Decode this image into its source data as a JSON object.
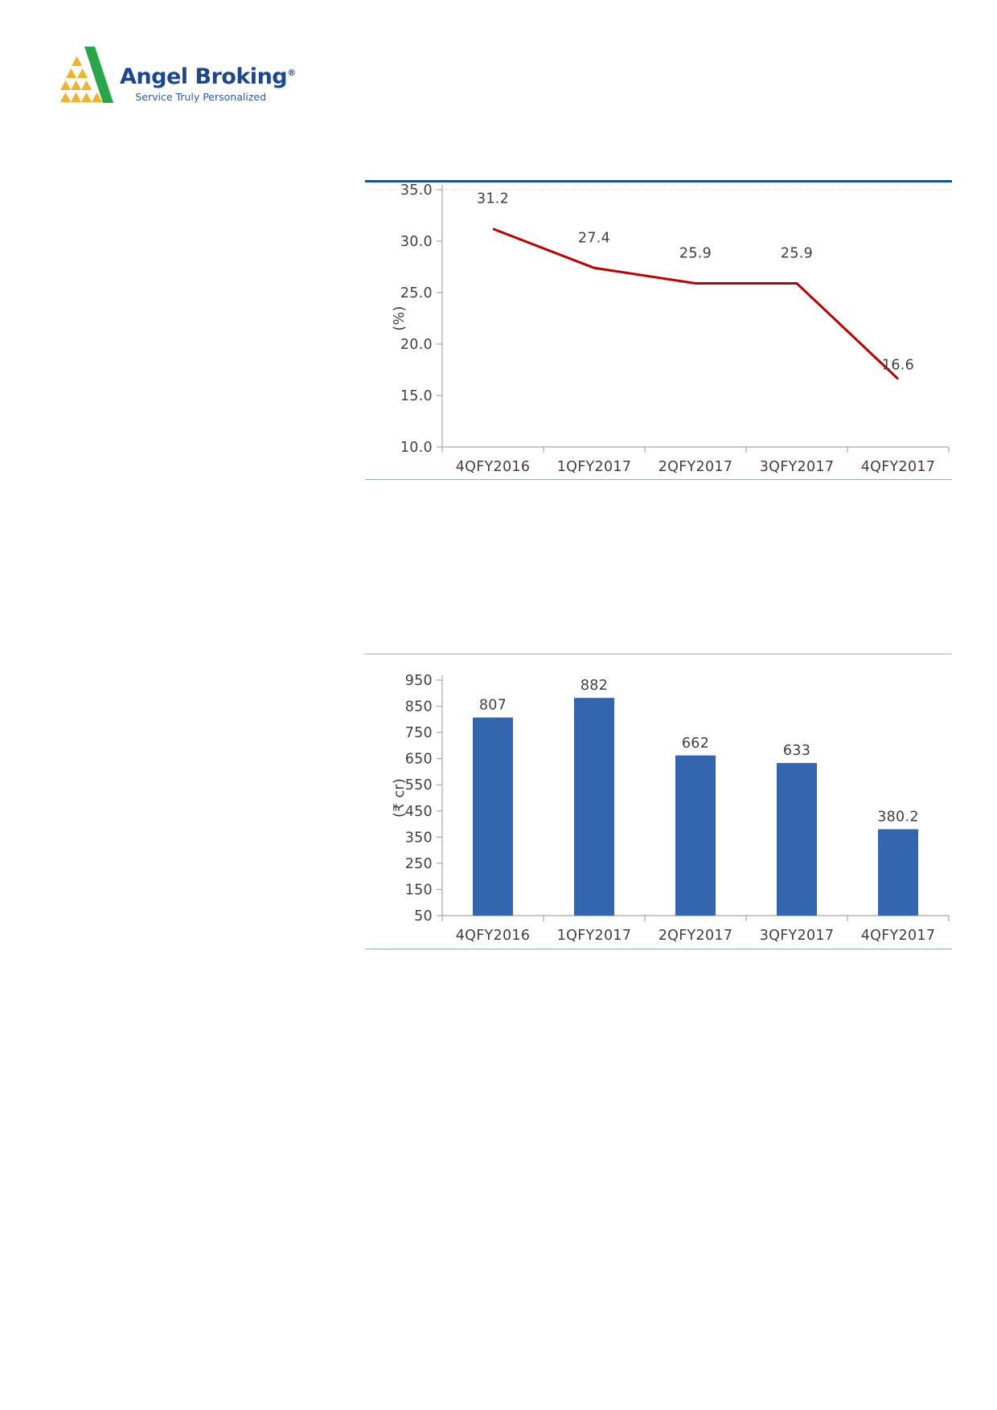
{
  "logo": {
    "name": "Angel Broking",
    "registered_mark": "®",
    "tagline": "Service Truly Personalized",
    "brand_blue": "#1B4791",
    "tagline_blue": "#2C5AA8",
    "green": "#29A64A",
    "yellow": "#F3B229"
  },
  "chart_data": [
    {
      "type": "line",
      "title": "",
      "xlabel": "",
      "ylabel": "(%)",
      "categories": [
        "4QFY2016",
        "1QFY2017",
        "2QFY2017",
        "3QFY2017",
        "4QFY2017"
      ],
      "values": [
        31.2,
        27.4,
        25.9,
        25.9,
        16.6
      ],
      "point_labels": [
        "31.2",
        "27.4",
        "25.9",
        "25.9",
        "16.6"
      ],
      "yticks": [
        35,
        30,
        25,
        20,
        15,
        10
      ],
      "ytick_labels": [
        "35.0",
        "30.0",
        "25.0",
        "20.0",
        "15.0",
        "10.0"
      ],
      "ylim": [
        10,
        35
      ],
      "grid": false,
      "legend_position": "none",
      "line_color": "#C00000",
      "accent_rule_color": "#1A5291",
      "divider_color": "#94B0BE",
      "axis_color": "#A6A6A6",
      "text_color": "#3F3F3F"
    },
    {
      "type": "bar",
      "title": "",
      "xlabel": "",
      "ylabel": "(₹ cr)",
      "categories": [
        "4QFY2016",
        "1QFY2017",
        "2QFY2017",
        "3QFY2017",
        "4QFY2017"
      ],
      "values": [
        807,
        882,
        662,
        633,
        380.2
      ],
      "point_labels": [
        "807",
        "882",
        "662",
        "633",
        "380.2"
      ],
      "yticks": [
        950,
        850,
        750,
        650,
        550,
        450,
        350,
        250,
        150,
        50
      ],
      "ytick_labels": [
        "950",
        "850",
        "750",
        "650",
        "550",
        "450",
        "350",
        "250",
        "150",
        "50"
      ],
      "ylim": [
        50,
        950
      ],
      "grid": false,
      "legend_position": "none",
      "bar_color": "#3366AE",
      "divider_color": "#94B0BE",
      "axis_color": "#A6A6A6",
      "text_color": "#3F3F3F"
    }
  ]
}
